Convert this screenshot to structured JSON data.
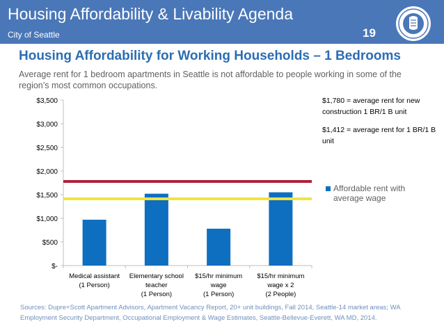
{
  "header": {
    "title": "Housing Affordability & Livability Agenda",
    "subtitle": "City of Seattle",
    "page_number": "19",
    "background_color": "#4a77b8",
    "logo_icon": "city-of-seattle-seal-icon"
  },
  "slide": {
    "title": "Housing Affordability for Working Households – 1 Bedrooms",
    "description": "Average rent for 1 bedroom apartments in Seattle is not affordable to people working in some of the region’s most common occupations."
  },
  "notes": {
    "new_construction": "$1,780 = average rent for new construction 1 BR/1 B unit",
    "average": "$1,412 = average rent for 1 BR/1 B unit"
  },
  "sources": "Sources: Dupre+Scott Apartment Advisors, Apartment Vacancy Report, 20+ unit buildings, Fall 2014, Seattle-14 market areas; WA Employment Security Department, Occupational Employment & Wage Estimates, Seattle-Bellevue-Everett, WA MD, 2014.",
  "chart_data": {
    "type": "bar",
    "categories": [
      [
        "Medical assistant",
        "(1 Person)"
      ],
      [
        "Elementary school",
        "teacher",
        "(1 Person)"
      ],
      [
        "$15/hr minimum",
        "wage",
        "(1 Person)"
      ],
      [
        "$15/hr minimum",
        "wage x 2",
        "(2 People)"
      ]
    ],
    "series": [
      {
        "name": "Affordable rent with average wage",
        "values": [
          970,
          1520,
          780,
          1550
        ],
        "color": "#0e6fc0"
      }
    ],
    "reference_lines": [
      {
        "value": 1780,
        "color": "#b0213a"
      },
      {
        "value": 1412,
        "color": "#f0e442"
      }
    ],
    "ylim": [
      0,
      3500
    ],
    "yticks": [
      0,
      500,
      1000,
      1500,
      2000,
      2500,
      3000,
      3500
    ],
    "ytick_labels": [
      "$-",
      "$500",
      "$1,000",
      "$1,500",
      "$2,000",
      "$2,500",
      "$3,000",
      "$3,500"
    ],
    "legend_position": "right",
    "grid": false
  }
}
